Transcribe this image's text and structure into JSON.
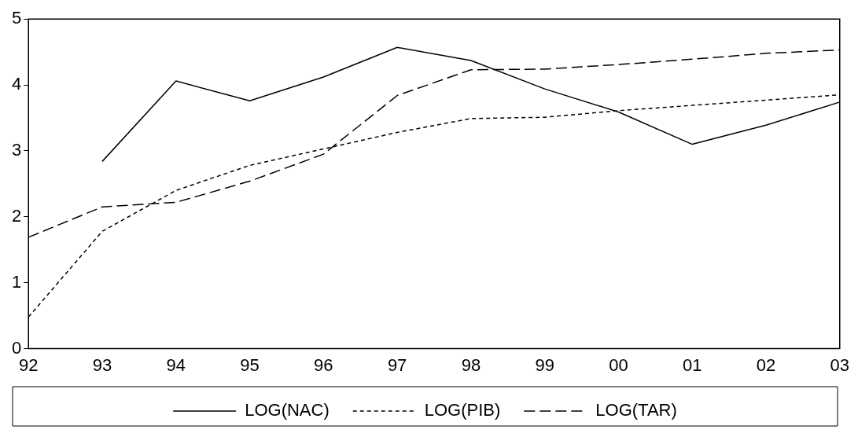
{
  "chart_data": {
    "type": "line",
    "categories": [
      "92",
      "93",
      "94",
      "95",
      "96",
      "97",
      "98",
      "99",
      "00",
      "01",
      "02",
      "03"
    ],
    "series": [
      {
        "name": "LOG(NAC)",
        "color": "#000000",
        "line_style": "solid",
        "values": [
          null,
          2.84,
          4.06,
          3.76,
          4.12,
          4.57,
          4.37,
          3.94,
          3.59,
          3.1,
          3.39,
          3.74
        ]
      },
      {
        "name": "LOG(PIB)",
        "color": "#000000",
        "line_style": "dotted",
        "values": [
          0.48,
          1.78,
          2.4,
          2.78,
          3.03,
          3.28,
          3.49,
          3.51,
          3.61,
          3.69,
          3.77,
          3.85
        ]
      },
      {
        "name": "LOG(TAR)",
        "color": "#000000",
        "line_style": "dashed",
        "values": [
          1.69,
          2.15,
          2.22,
          2.54,
          2.95,
          3.84,
          4.23,
          4.24,
          4.31,
          4.39,
          4.48,
          4.53
        ]
      }
    ],
    "ylim": [
      0,
      5
    ],
    "yticks": [
      0,
      1,
      2,
      3,
      4,
      5
    ],
    "grid": false,
    "legend": "bottom",
    "marker": "none"
  }
}
